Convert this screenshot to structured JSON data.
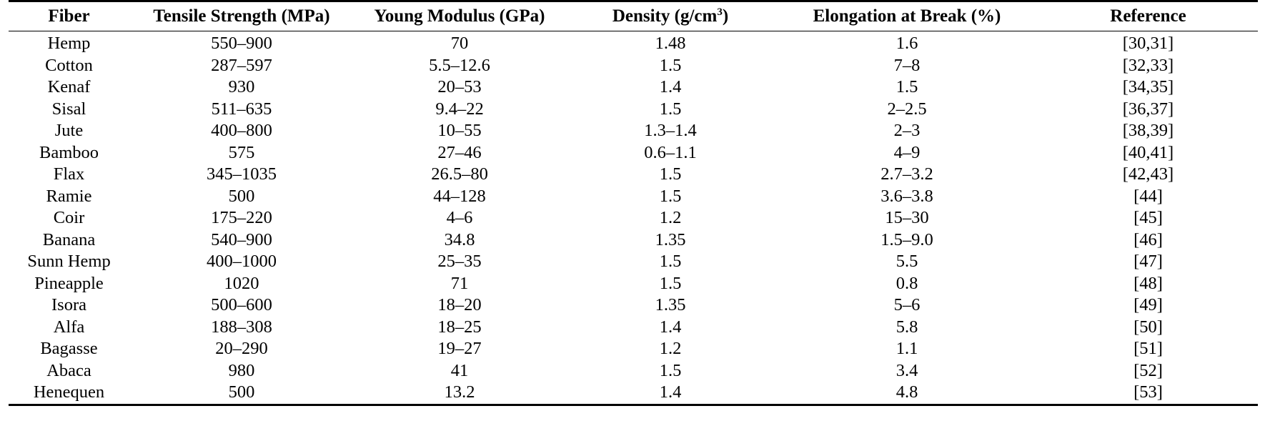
{
  "table": {
    "headers": {
      "fiber": "Fiber",
      "tensile": "Tensile Strength (MPa)",
      "young": "Young Modulus (GPa)",
      "density_prefix": "Density (g/cm",
      "density_sup": "3",
      "density_suffix": ")",
      "elongation": "Elongation at Break (%)",
      "reference": "Reference"
    },
    "rows": [
      {
        "fiber": "Hemp",
        "tensile": "550–900",
        "young": "70",
        "density": "1.48",
        "elongation": "1.6",
        "reference": "[30,31]"
      },
      {
        "fiber": "Cotton",
        "tensile": "287–597",
        "young": "5.5–12.6",
        "density": "1.5",
        "elongation": "7–8",
        "reference": "[32,33]"
      },
      {
        "fiber": "Kenaf",
        "tensile": "930",
        "young": "20–53",
        "density": "1.4",
        "elongation": "1.5",
        "reference": "[34,35]"
      },
      {
        "fiber": "Sisal",
        "tensile": "511–635",
        "young": "9.4–22",
        "density": "1.5",
        "elongation": "2–2.5",
        "reference": "[36,37]"
      },
      {
        "fiber": "Jute",
        "tensile": "400–800",
        "young": "10–55",
        "density": "1.3–1.4",
        "elongation": "2–3",
        "reference": "[38,39]"
      },
      {
        "fiber": "Bamboo",
        "tensile": "575",
        "young": "27–46",
        "density": "0.6–1.1",
        "elongation": "4–9",
        "reference": "[40,41]"
      },
      {
        "fiber": "Flax",
        "tensile": "345–1035",
        "young": "26.5–80",
        "density": "1.5",
        "elongation": "2.7–3.2",
        "reference": "[42,43]"
      },
      {
        "fiber": "Ramie",
        "tensile": "500",
        "young": "44–128",
        "density": "1.5",
        "elongation": "3.6–3.8",
        "reference": "[44]"
      },
      {
        "fiber": "Coir",
        "tensile": "175–220",
        "young": "4–6",
        "density": "1.2",
        "elongation": "15–30",
        "reference": "[45]"
      },
      {
        "fiber": "Banana",
        "tensile": "540–900",
        "young": "34.8",
        "density": "1.35",
        "elongation": "1.5–9.0",
        "reference": "[46]"
      },
      {
        "fiber": "Sunn Hemp",
        "tensile": "400–1000",
        "young": "25–35",
        "density": "1.5",
        "elongation": "5.5",
        "reference": "[47]"
      },
      {
        "fiber": "Pineapple",
        "tensile": "1020",
        "young": "71",
        "density": "1.5",
        "elongation": "0.8",
        "reference": "[48]"
      },
      {
        "fiber": "Isora",
        "tensile": "500–600",
        "young": "18–20",
        "density": "1.35",
        "elongation": "5–6",
        "reference": "[49]"
      },
      {
        "fiber": "Alfa",
        "tensile": "188–308",
        "young": "18–25",
        "density": "1.4",
        "elongation": "5.8",
        "reference": "[50]"
      },
      {
        "fiber": "Bagasse",
        "tensile": "20–290",
        "young": "19–27",
        "density": "1.2",
        "elongation": "1.1",
        "reference": "[51]"
      },
      {
        "fiber": "Abaca",
        "tensile": "980",
        "young": "41",
        "density": "1.5",
        "elongation": "3.4",
        "reference": "[52]"
      },
      {
        "fiber": "Henequen",
        "tensile": "500",
        "young": "13.2",
        "density": "1.4",
        "elongation": "4.8",
        "reference": "[53]"
      }
    ]
  }
}
